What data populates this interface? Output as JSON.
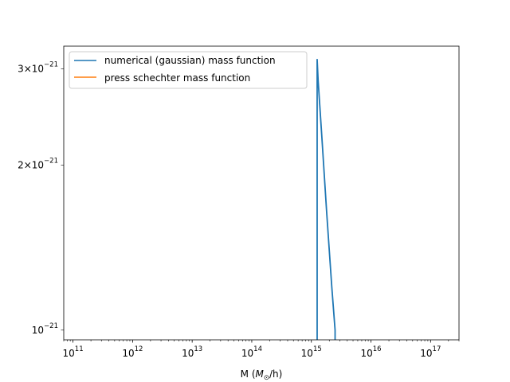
{
  "chart_data": {
    "type": "line",
    "title": "",
    "xlabel": {
      "prefix": "M (",
      "symbol": "M",
      "subscript": "⊙",
      "suffix": "/h)"
    },
    "ylabel": "",
    "xscale": "log",
    "yscale": "log",
    "xlim": [
      70000000000.0,
      3e+17
    ],
    "ylim": [
      9.6e-22,
      3.3e-21
    ],
    "grid": false,
    "legend_position": "top-left",
    "x_ticks": [
      {
        "value": 100000000000.0,
        "base": "10",
        "exp": "11"
      },
      {
        "value": 1000000000000.0,
        "base": "10",
        "exp": "12"
      },
      {
        "value": 10000000000000.0,
        "base": "10",
        "exp": "13"
      },
      {
        "value": 100000000000000.0,
        "base": "10",
        "exp": "14"
      },
      {
        "value": 1000000000000000.0,
        "base": "10",
        "exp": "15"
      },
      {
        "value": 1e+16,
        "base": "10",
        "exp": "16"
      },
      {
        "value": 1e+17,
        "base": "10",
        "exp": "17"
      }
    ],
    "y_ticks": [
      {
        "value": 3e-21,
        "mant": "3×10",
        "exp": "−21"
      },
      {
        "value": 2e-21,
        "mant": "2×10",
        "exp": "−21"
      },
      {
        "value": 1e-21,
        "mant": "10",
        "exp": "−21"
      }
    ],
    "series": [
      {
        "name": "numerical (gaussian) mass function",
        "color": "#1f77b4",
        "x": [
          1250000000000000.0,
          1250000000000000.0,
          1300000000000000.0,
          1500000000000000.0,
          1800000000000000.0,
          2200000000000000.0,
          2500000000000000.0,
          2500000000000000.0
        ],
        "y": [
          9e-22,
          3.12e-21,
          2.85e-21,
          2.25e-21,
          1.65e-21,
          1.2e-21,
          1e-21,
          9e-22
        ]
      },
      {
        "name": "press schechter mass function",
        "color": "#ff7f0e",
        "x": [],
        "y": []
      }
    ]
  }
}
